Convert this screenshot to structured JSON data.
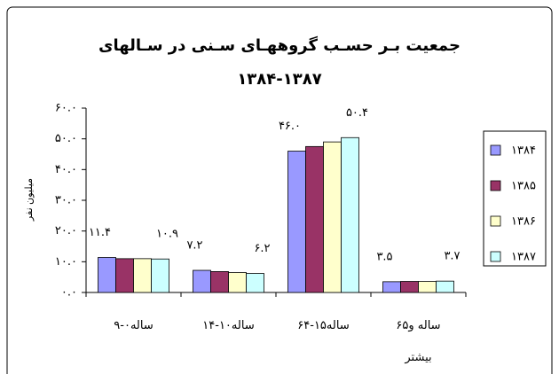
{
  "chart_data": {
    "type": "bar",
    "title": "جمعیت بـر حسـب گروههـای سـنی در سـالهای",
    "subtitle": "۱۳۸۴-۱۳۸۷",
    "y_label": "میلیون نفر",
    "categories": [
      "ساله۰-۹",
      "ساله۱۰-۱۴",
      "ساله۱۵-۶۴",
      "۶۵ساله و بیشتر"
    ],
    "series": [
      {
        "name": "۱۳۸۴",
        "color": "#9999ff",
        "values": [
          11.4,
          7.2,
          46.0,
          3.5
        ],
        "value_labels": [
          "۱۱.۴",
          "۷.۲",
          "۴۶.۰",
          "۳.۵"
        ]
      },
      {
        "name": "۱۳۸۵",
        "color": "#993366",
        "values": [
          11.0,
          6.8,
          47.5,
          3.6
        ]
      },
      {
        "name": "۱۳۸۶",
        "color": "#ffffcc",
        "values": [
          11.0,
          6.5,
          49.0,
          3.6
        ]
      },
      {
        "name": "۱۳۸۷",
        "color": "#ccffff",
        "values": [
          10.9,
          6.2,
          50.4,
          3.7
        ],
        "value_labels": [
          "۱۰.۹",
          "۶.۲",
          "۵۰.۴",
          "۳.۷"
        ]
      }
    ],
    "ylim": [
      0,
      60
    ],
    "yticks": [
      {
        "value": 0,
        "label": "۰.۰"
      },
      {
        "value": 10,
        "label": "۱۰.۰"
      },
      {
        "value": 20,
        "label": "۲۰.۰"
      },
      {
        "value": 30,
        "label": "۳۰.۰"
      },
      {
        "value": 40,
        "label": "۴۰.۰"
      },
      {
        "value": 50,
        "label": "۵۰.۰"
      },
      {
        "value": 60,
        "label": "۶۰.۰"
      }
    ],
    "grid": false,
    "legend": "right"
  }
}
